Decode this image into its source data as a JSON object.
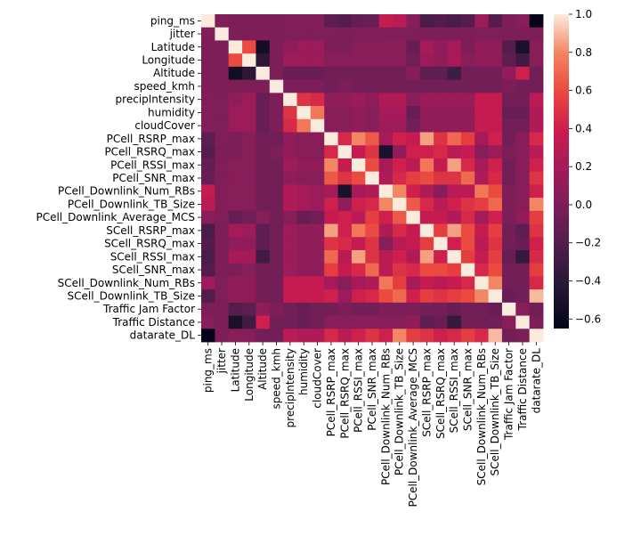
{
  "chart_data": {
    "type": "heatmap",
    "title": "",
    "xlabel": "",
    "ylabel": "",
    "labels": [
      "ping_ms",
      "jitter",
      "Latitude",
      "Longitude",
      "Altitude",
      "speed_kmh",
      "precipIntensity",
      "humidity",
      "cloudCover",
      "PCell_RSRP_max",
      "PCell_RSRQ_max",
      "PCell_RSSI_max",
      "PCell_SNR_max",
      "PCell_Downlink_Num_RBs",
      "PCell_Downlink_TB_Size",
      "PCell_Downlink_Average_MCS",
      "SCell_RSRP_max",
      "SCell_RSRQ_max",
      "SCell_RSSI_max",
      "SCell_SNR_max",
      "SCell_Downlink_Num_RBs",
      "SCell_Downlink_TB_Size",
      "Traffic Jam Factor",
      "Traffic Distance",
      "datarate_DL"
    ],
    "values": [
      [
        1.0,
        0.02,
        0.0,
        0.0,
        0.0,
        0.0,
        0.02,
        0.02,
        0.03,
        -0.15,
        -0.2,
        -0.12,
        -0.1,
        0.35,
        0.3,
        0.05,
        -0.25,
        -0.22,
        -0.25,
        -0.2,
        0.15,
        -0.2,
        0.0,
        0.05,
        -0.65
      ],
      [
        0.02,
        1.0,
        0.0,
        0.0,
        0.0,
        0.0,
        0.01,
        0.01,
        0.01,
        0.01,
        0.0,
        0.01,
        0.01,
        0.02,
        0.02,
        0.01,
        0.0,
        0.0,
        0.0,
        0.0,
        0.01,
        0.01,
        0.0,
        0.0,
        0.0
      ],
      [
        0.0,
        0.0,
        1.0,
        0.6,
        -0.55,
        0.0,
        0.1,
        0.15,
        0.15,
        0.0,
        0.0,
        0.05,
        0.05,
        0.05,
        0.05,
        -0.1,
        0.2,
        0.1,
        0.2,
        0.0,
        0.1,
        0.1,
        -0.2,
        -0.5,
        0.05
      ],
      [
        0.0,
        0.0,
        0.6,
        1.0,
        -0.4,
        0.0,
        0.15,
        0.15,
        0.15,
        0.05,
        0.05,
        0.05,
        0.05,
        0.05,
        0.05,
        -0.05,
        0.15,
        0.1,
        0.2,
        0.05,
        0.1,
        0.1,
        -0.15,
        -0.3,
        0.05
      ],
      [
        0.0,
        0.0,
        -0.55,
        -0.4,
        1.0,
        0.0,
        -0.1,
        -0.1,
        -0.1,
        -0.05,
        -0.05,
        -0.05,
        -0.05,
        -0.05,
        -0.05,
        0.05,
        -0.15,
        -0.15,
        -0.3,
        -0.05,
        -0.05,
        -0.05,
        0.1,
        0.4,
        -0.05
      ],
      [
        0.0,
        0.0,
        0.0,
        0.0,
        0.0,
        1.0,
        0.0,
        0.0,
        0.0,
        -0.05,
        0.0,
        -0.05,
        -0.05,
        -0.05,
        -0.05,
        -0.05,
        -0.05,
        -0.05,
        -0.05,
        -0.05,
        -0.05,
        -0.05,
        0.0,
        -0.05,
        -0.05
      ],
      [
        0.02,
        0.01,
        0.1,
        0.15,
        -0.1,
        0.0,
        1.0,
        0.5,
        0.45,
        0.1,
        0.1,
        0.15,
        0.1,
        0.25,
        0.25,
        0.05,
        0.15,
        0.15,
        0.15,
        0.15,
        0.35,
        0.35,
        -0.05,
        -0.05,
        0.3
      ],
      [
        0.02,
        0.01,
        0.15,
        0.15,
        -0.1,
        0.0,
        0.5,
        1.0,
        0.75,
        0.05,
        0.05,
        0.1,
        0.05,
        0.2,
        0.2,
        -0.1,
        0.1,
        0.1,
        0.1,
        0.1,
        0.35,
        0.35,
        -0.1,
        -0.1,
        0.25
      ],
      [
        0.03,
        0.01,
        0.15,
        0.15,
        -0.1,
        0.0,
        0.45,
        0.75,
        1.0,
        0.05,
        0.05,
        0.1,
        0.05,
        0.15,
        0.15,
        -0.05,
        0.1,
        0.1,
        0.1,
        0.1,
        0.35,
        0.35,
        -0.05,
        -0.05,
        0.25
      ],
      [
        -0.15,
        0.01,
        0.0,
        0.05,
        -0.05,
        -0.05,
        0.1,
        0.05,
        0.05,
        1.0,
        0.45,
        0.8,
        0.65,
        0.2,
        0.4,
        0.35,
        0.85,
        0.5,
        0.7,
        0.55,
        0.2,
        0.4,
        -0.05,
        0.05,
        0.45
      ],
      [
        -0.2,
        0.0,
        0.0,
        0.05,
        -0.05,
        0.0,
        0.1,
        0.05,
        0.05,
        0.45,
        1.0,
        0.35,
        0.5,
        -0.5,
        0.1,
        0.4,
        0.4,
        0.45,
        0.3,
        0.35,
        0.05,
        0.15,
        0.0,
        0.05,
        0.3
      ],
      [
        -0.12,
        0.01,
        0.05,
        0.05,
        -0.05,
        -0.05,
        0.15,
        0.1,
        0.1,
        0.8,
        0.35,
        1.0,
        0.6,
        0.2,
        0.4,
        0.3,
        0.75,
        0.35,
        0.85,
        0.45,
        0.2,
        0.4,
        -0.05,
        0.05,
        0.4
      ],
      [
        -0.1,
        0.01,
        0.05,
        0.05,
        -0.05,
        -0.05,
        0.1,
        0.05,
        0.05,
        0.65,
        0.5,
        0.6,
        1.0,
        0.25,
        0.45,
        0.55,
        0.6,
        0.5,
        0.5,
        0.7,
        0.25,
        0.45,
        -0.05,
        0.05,
        0.5
      ],
      [
        0.35,
        0.02,
        0.05,
        0.05,
        -0.05,
        -0.05,
        0.25,
        0.2,
        0.15,
        0.2,
        -0.5,
        0.2,
        0.25,
        1.0,
        0.8,
        0.4,
        0.25,
        0.05,
        0.3,
        0.3,
        0.75,
        0.6,
        0.0,
        0.05,
        0.4
      ],
      [
        0.3,
        0.02,
        0.05,
        0.05,
        -0.05,
        -0.05,
        0.25,
        0.2,
        0.15,
        0.4,
        0.1,
        0.4,
        0.45,
        0.8,
        1.0,
        0.65,
        0.45,
        0.3,
        0.4,
        0.5,
        0.55,
        0.7,
        0.0,
        0.05,
        0.8
      ],
      [
        0.05,
        0.01,
        -0.1,
        -0.05,
        0.05,
        -0.05,
        0.05,
        -0.1,
        -0.05,
        0.35,
        0.4,
        0.3,
        0.55,
        0.4,
        0.65,
        1.0,
        0.35,
        0.35,
        0.25,
        0.45,
        0.2,
        0.4,
        0.0,
        0.1,
        0.55
      ],
      [
        -0.25,
        0.0,
        0.2,
        0.15,
        -0.15,
        -0.05,
        0.15,
        0.1,
        0.1,
        0.85,
        0.4,
        0.75,
        0.6,
        0.25,
        0.45,
        0.35,
        1.0,
        0.55,
        0.85,
        0.6,
        0.35,
        0.55,
        -0.05,
        -0.15,
        0.5
      ],
      [
        -0.22,
        0.0,
        0.1,
        0.1,
        -0.15,
        -0.05,
        0.15,
        0.1,
        0.1,
        0.5,
        0.45,
        0.35,
        0.5,
        0.05,
        0.3,
        0.35,
        0.55,
        1.0,
        0.4,
        0.6,
        0.3,
        0.5,
        -0.05,
        -0.1,
        0.4
      ],
      [
        -0.25,
        0.0,
        0.2,
        0.2,
        -0.3,
        -0.05,
        0.15,
        0.1,
        0.1,
        0.7,
        0.3,
        0.85,
        0.5,
        0.3,
        0.4,
        0.25,
        0.85,
        0.4,
        1.0,
        0.55,
        0.35,
        0.55,
        -0.1,
        -0.35,
        0.45
      ],
      [
        -0.2,
        0.0,
        0.0,
        0.05,
        -0.05,
        -0.05,
        0.15,
        0.1,
        0.1,
        0.55,
        0.35,
        0.45,
        0.7,
        0.3,
        0.5,
        0.45,
        0.6,
        0.6,
        0.55,
        1.0,
        0.45,
        0.6,
        -0.05,
        -0.05,
        0.55
      ],
      [
        0.15,
        0.01,
        0.1,
        0.1,
        -0.05,
        -0.05,
        0.35,
        0.35,
        0.35,
        0.2,
        0.05,
        0.2,
        0.25,
        0.75,
        0.55,
        0.2,
        0.35,
        0.3,
        0.35,
        0.45,
        1.0,
        0.8,
        -0.05,
        -0.05,
        0.45
      ],
      [
        -0.2,
        0.01,
        0.1,
        0.1,
        -0.05,
        -0.05,
        0.35,
        0.35,
        0.35,
        0.4,
        0.15,
        0.4,
        0.45,
        0.6,
        0.7,
        0.4,
        0.55,
        0.5,
        0.55,
        0.6,
        0.8,
        1.0,
        -0.1,
        -0.05,
        0.9
      ],
      [
        0.0,
        0.0,
        -0.2,
        -0.15,
        0.1,
        0.0,
        -0.05,
        -0.1,
        -0.05,
        -0.05,
        0.0,
        -0.05,
        -0.05,
        0.0,
        0.0,
        0.0,
        -0.05,
        -0.05,
        -0.1,
        -0.05,
        -0.05,
        -0.1,
        1.0,
        0.05,
        -0.05
      ],
      [
        0.05,
        0.0,
        -0.5,
        -0.3,
        0.4,
        -0.05,
        -0.05,
        -0.1,
        -0.05,
        0.05,
        0.05,
        0.05,
        0.05,
        0.05,
        0.05,
        0.1,
        -0.15,
        -0.1,
        -0.35,
        -0.05,
        -0.05,
        -0.05,
        0.05,
        1.0,
        0.0
      ],
      [
        -0.65,
        0.0,
        0.05,
        0.05,
        -0.05,
        -0.05,
        0.3,
        0.25,
        0.25,
        0.45,
        0.3,
        0.4,
        0.5,
        0.4,
        0.8,
        0.55,
        0.5,
        0.4,
        0.45,
        0.55,
        0.45,
        0.9,
        -0.05,
        0.0,
        1.0
      ]
    ],
    "vmin": -0.65,
    "vmax": 1.0,
    "colormap": "rocket",
    "colorbar": {
      "ticks": [
        1.0,
        0.8,
        0.6,
        0.4,
        0.2,
        0.0,
        -0.2,
        -0.4,
        -0.6
      ],
      "tick_labels": [
        "1.0",
        "0.8",
        "0.6",
        "0.4",
        "0.2",
        "0.0",
        "−0.2",
        "−0.4",
        "−0.6"
      ]
    },
    "grid": false,
    "legend": "colorbar-right"
  }
}
